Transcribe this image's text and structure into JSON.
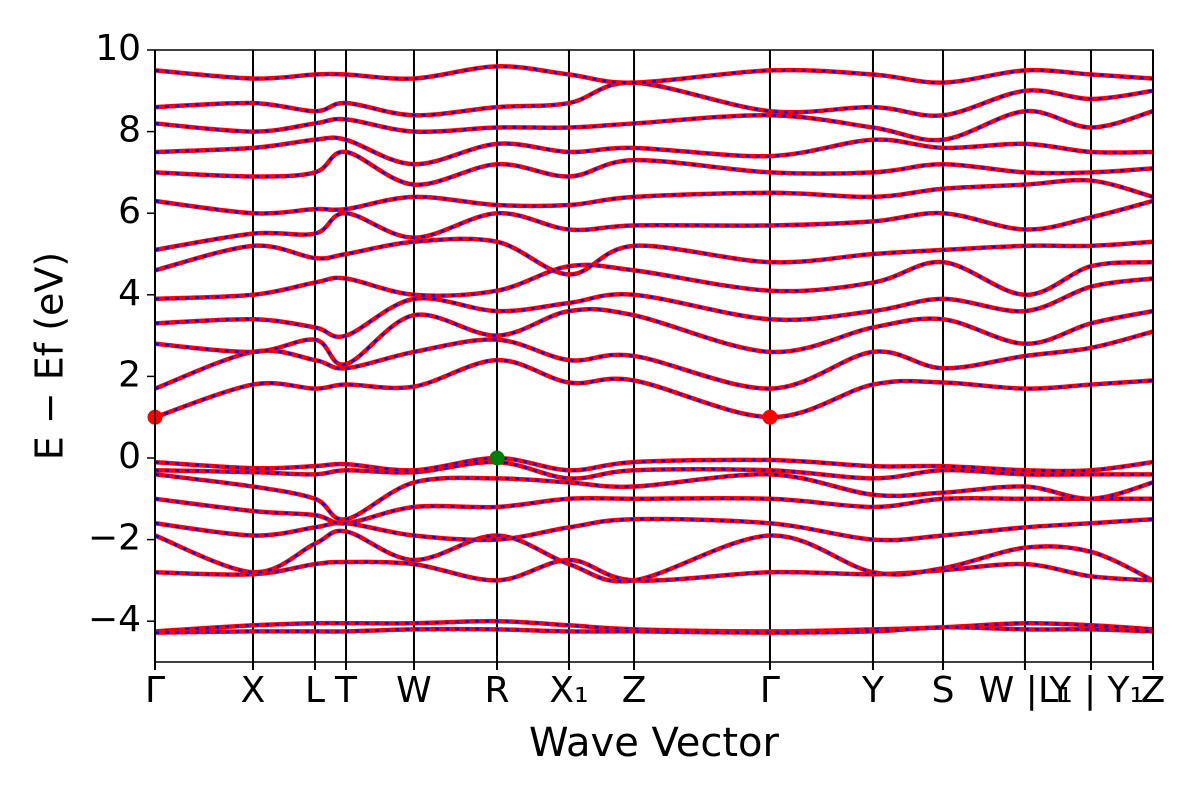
{
  "chart_data": {
    "type": "band-structure",
    "x_label": "Wave Vector",
    "y_label": "E − Ef (eV)",
    "xlim": [
      0,
      1
    ],
    "ylim": [
      -5,
      10
    ],
    "yticks": [
      {
        "value": -4,
        "label": "−4"
      },
      {
        "value": -2,
        "label": "−2"
      },
      0,
      2,
      4,
      6,
      8,
      10
    ],
    "xticks": [
      {
        "value": 0,
        "label": "Γ"
      },
      {
        "value": 0.0982,
        "label": "X"
      },
      {
        "value": 0.1603,
        "label": "L"
      },
      {
        "value": 0.1914,
        "label": "T"
      },
      {
        "value": 0.2595,
        "label": "W"
      },
      {
        "value": 0.3427,
        "label": "R"
      },
      {
        "value": 0.4148,
        "label": "X₁"
      },
      {
        "value": 0.48,
        "label": "Z"
      },
      {
        "value": 0.6162,
        "label": "Γ"
      },
      {
        "value": 0.7194,
        "label": "Y"
      },
      {
        "value": 0.7896,
        "label": "S"
      },
      {
        "value": 0.8717,
        "label": "W | Y"
      },
      {
        "value": 0.9379,
        "label": "L₁ | Y₁"
      },
      {
        "value": 1,
        "label": "Z"
      }
    ],
    "colors": [
      "#ff0000",
      "#0000ff"
    ],
    "bands": [
      [
        -4.25,
        -4.1,
        -4.05,
        -4.05,
        -4.05,
        -4.0,
        -4.1,
        -4.2,
        -4.25,
        -4.2,
        -4.15,
        -4.05,
        -4.1,
        -4.2
      ],
      [
        -4.28,
        -4.25,
        -4.25,
        -4.25,
        -4.2,
        -4.2,
        -4.25,
        -4.25,
        -4.28,
        -4.25,
        -4.15,
        -4.2,
        -4.2,
        -4.25
      ],
      [
        -2.8,
        -2.85,
        -2.6,
        -2.55,
        -2.6,
        -3.0,
        -2.5,
        -3.0,
        -2.8,
        -2.85,
        -2.75,
        -2.6,
        -2.9,
        -3.0
      ],
      [
        -1.9,
        -2.8,
        -2.1,
        -1.8,
        -2.5,
        -1.9,
        -2.6,
        -3.0,
        -1.9,
        -2.8,
        -2.7,
        -2.2,
        -2.3,
        -3.0
      ],
      [
        -1.6,
        -1.9,
        -1.7,
        -1.6,
        -1.9,
        -2.0,
        -1.7,
        -1.5,
        -1.6,
        -2.0,
        -1.9,
        -1.7,
        -1.6,
        -1.5
      ],
      [
        -1.0,
        -1.3,
        -1.4,
        -1.6,
        -1.2,
        -1.2,
        -1.0,
        -1.0,
        -1.0,
        -1.2,
        -1.0,
        -1.0,
        -1.0,
        -1.0
      ],
      [
        -0.4,
        -0.7,
        -1.0,
        -1.5,
        -0.6,
        -0.5,
        -0.6,
        -0.7,
        -0.4,
        -0.9,
        -0.85,
        -0.7,
        -1.0,
        -0.6
      ],
      [
        -0.3,
        -0.35,
        -0.4,
        -0.3,
        -0.35,
        -0.1,
        -0.5,
        -0.3,
        -0.3,
        -0.5,
        -0.3,
        -0.4,
        -0.4,
        -0.4
      ],
      [
        -0.1,
        -0.25,
        -0.2,
        -0.15,
        -0.3,
        0.0,
        -0.3,
        -0.1,
        -0.05,
        -0.2,
        -0.2,
        -0.3,
        -0.3,
        -0.1
      ],
      [
        1.0,
        1.8,
        1.7,
        1.8,
        1.75,
        2.4,
        1.85,
        1.9,
        1.0,
        1.8,
        1.85,
        1.7,
        1.8,
        1.9
      ],
      [
        1.7,
        2.6,
        2.4,
        2.2,
        2.6,
        2.9,
        2.4,
        2.5,
        1.7,
        2.6,
        2.2,
        2.5,
        2.7,
        3.1
      ],
      [
        2.8,
        2.6,
        2.9,
        2.3,
        3.5,
        3.0,
        3.6,
        3.5,
        2.6,
        3.2,
        3.4,
        2.8,
        3.3,
        3.6
      ],
      [
        3.3,
        3.4,
        3.2,
        3.0,
        3.9,
        3.6,
        3.8,
        4.0,
        3.4,
        3.6,
        3.9,
        3.6,
        4.2,
        4.4
      ],
      [
        3.9,
        4.0,
        4.3,
        4.4,
        4.0,
        4.1,
        4.7,
        4.6,
        4.1,
        4.3,
        4.8,
        4.0,
        4.7,
        4.8
      ],
      [
        4.6,
        5.2,
        4.9,
        5.0,
        5.3,
        5.3,
        4.5,
        5.2,
        4.8,
        5.0,
        5.1,
        5.2,
        5.2,
        5.3
      ],
      [
        5.1,
        5.5,
        5.5,
        6.0,
        5.4,
        6.0,
        5.6,
        5.7,
        5.7,
        5.8,
        6.0,
        5.6,
        5.9,
        6.3
      ],
      [
        6.3,
        6.0,
        6.1,
        6.1,
        6.4,
        6.2,
        6.2,
        6.4,
        6.5,
        6.4,
        6.6,
        6.7,
        6.8,
        6.4
      ],
      [
        7.0,
        6.9,
        7.0,
        7.5,
        6.7,
        7.2,
        6.9,
        7.3,
        7.0,
        7.0,
        7.2,
        7.0,
        7.0,
        7.1
      ],
      [
        7.5,
        7.6,
        7.8,
        7.8,
        7.2,
        7.7,
        7.5,
        7.6,
        7.4,
        7.8,
        7.6,
        7.7,
        7.5,
        7.5
      ],
      [
        8.2,
        8.0,
        8.2,
        8.3,
        8.0,
        8.1,
        8.1,
        8.2,
        8.4,
        8.1,
        7.8,
        8.5,
        8.1,
        8.5
      ],
      [
        8.6,
        8.7,
        8.5,
        8.7,
        8.4,
        8.6,
        8.7,
        9.2,
        8.5,
        8.6,
        8.4,
        9.0,
        8.8,
        9.0
      ],
      [
        9.5,
        9.3,
        9.4,
        9.4,
        9.3,
        9.6,
        9.4,
        9.2,
        9.5,
        9.4,
        9.2,
        9.5,
        9.4,
        9.3
      ]
    ],
    "markers": [
      {
        "x": 0,
        "y": 1.0,
        "color": "#ff0000"
      },
      {
        "x": 0.6162,
        "y": 1.0,
        "color": "#ff0000"
      },
      {
        "x": 0.3427,
        "y": 0.0,
        "color": "#008000"
      }
    ]
  }
}
